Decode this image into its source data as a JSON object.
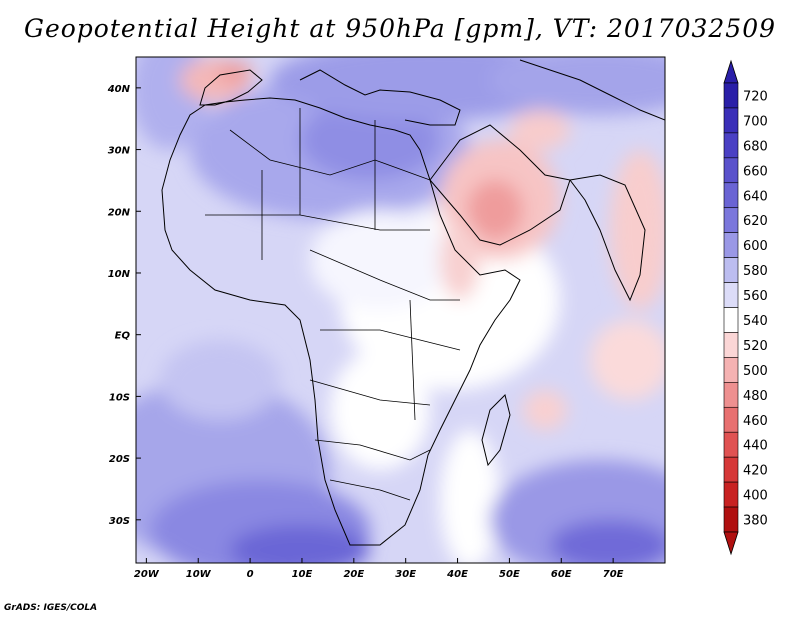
{
  "title": "Geopotential Height at 950hPa [gpm], VT: 2017032509",
  "credit": "GrADS: IGES/COLA",
  "map": {
    "x_ticks": [
      "20W",
      "10W",
      "0",
      "10E",
      "20E",
      "30E",
      "40E",
      "50E",
      "60E",
      "70E"
    ],
    "y_ticks": [
      "40N",
      "30N",
      "20N",
      "10N",
      "EQ",
      "10S",
      "20S",
      "30S"
    ]
  },
  "colorbar": {
    "levels": [
      "720",
      "700",
      "680",
      "660",
      "640",
      "620",
      "600",
      "580",
      "560",
      "540",
      "520",
      "500",
      "480",
      "460",
      "440",
      "420",
      "400",
      "380"
    ],
    "colors": [
      "#2a1fa8",
      "#3a2fb8",
      "#4a40c4",
      "#5a52cc",
      "#6a64d4",
      "#7b77dc",
      "#9a98e6",
      "#bcbdf0",
      "#dcdcf8",
      "#ffffff",
      "#fbd6d6",
      "#f5b2b2",
      "#ee9090",
      "#e87070",
      "#e05252",
      "#d63838",
      "#c82222",
      "#b01010"
    ]
  },
  "chart_data": {
    "type": "heatmap",
    "title": "Geopotential Height at 950hPa [gpm], VT: 2017032509",
    "variable": "Geopotential Height at 950hPa",
    "units": "gpm",
    "valid_time": "2017032509",
    "lon_range": [
      -22,
      80
    ],
    "lat_range": [
      -37,
      45
    ],
    "contour_levels": [
      380,
      400,
      420,
      440,
      460,
      480,
      500,
      520,
      540,
      560,
      580,
      600,
      620,
      640,
      660,
      680,
      700,
      720
    ]
  }
}
